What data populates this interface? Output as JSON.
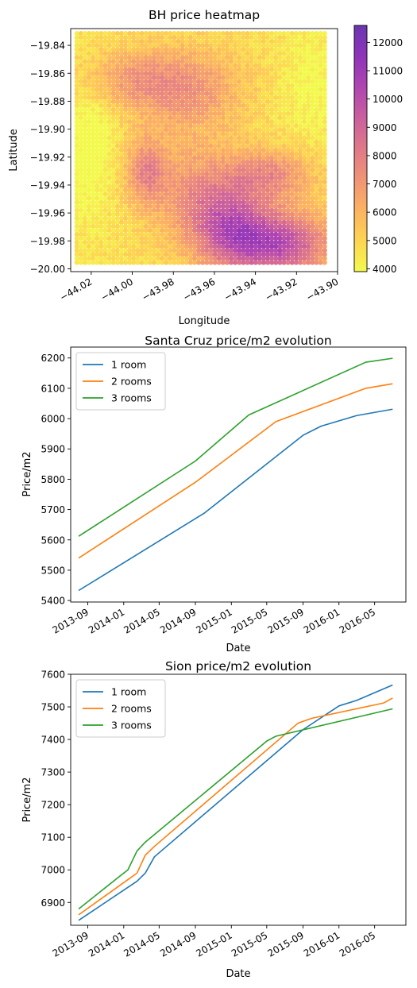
{
  "chart_data": [
    {
      "type": "heatmap",
      "title": "BH price heatmap",
      "xlabel": "Longitude",
      "ylabel": "Latitude",
      "xlim": [
        -44.03,
        -43.9
      ],
      "ylim": [
        -20.002,
        -19.828
      ],
      "xticks": [
        -44.02,
        -44.0,
        -43.98,
        -43.96,
        -43.94,
        -43.92,
        -43.9
      ],
      "xtick_labels": [
        "−44.02",
        "−44.00",
        "−43.98",
        "−43.96",
        "−43.94",
        "−43.92",
        "−43.90"
      ],
      "yticks": [
        -19.84,
        -19.86,
        -19.88,
        -19.9,
        -19.92,
        -19.94,
        -19.96,
        -19.98,
        -20.0
      ],
      "ytick_labels": [
        "−19.84",
        "−19.86",
        "−19.88",
        "−19.90",
        "−19.92",
        "−19.94",
        "−19.96",
        "−19.98",
        "−20.00"
      ],
      "colorbar": {
        "range": [
          3900,
          12600
        ],
        "ticks": [
          4000,
          5000,
          6000,
          7000,
          8000,
          9000,
          10000,
          11000,
          12000
        ],
        "tick_labels": [
          "4000",
          "5000",
          "6000",
          "7000",
          "8000",
          "9000",
          "10000",
          "11000",
          "12000"
        ],
        "colormap": "plasma_r",
        "alpha": 0.8
      },
      "extent": {
        "lon": [
          -44.027,
          -43.9063
        ],
        "lat": [
          -19.8315,
          -19.9955
        ]
      },
      "grid": false
    },
    {
      "type": "line",
      "title": "Santa Cruz price/m2 evolution",
      "xlabel": "Date",
      "ylabel": "Price/m2",
      "xlim": [
        "2013-07-05",
        "2016-08-15"
      ],
      "ylim": [
        5395,
        6236
      ],
      "xticks": [
        "2013-09",
        "2014-01",
        "2014-05",
        "2014-09",
        "2015-01",
        "2015-05",
        "2015-09",
        "2016-01",
        "2016-05"
      ],
      "yticks": [
        5400,
        5500,
        5600,
        5700,
        5800,
        5900,
        6000,
        6100,
        6200
      ],
      "legend": "upper-left",
      "grid": false,
      "series": [
        {
          "name": "1 room",
          "color": "#1f77b4",
          "points": [
            [
              "2013-08-01",
              5433
            ],
            [
              "2014-10-01",
              5688
            ],
            [
              "2015-09-01",
              5945
            ],
            [
              "2015-11-01",
              5975
            ],
            [
              "2016-03-01",
              6010
            ],
            [
              "2016-07-01",
              6031
            ]
          ]
        },
        {
          "name": "2 rooms",
          "color": "#ff7f0e",
          "points": [
            [
              "2013-08-01",
              5540
            ],
            [
              "2014-09-01",
              5790
            ],
            [
              "2015-06-01",
              5990
            ],
            [
              "2016-04-01",
              6100
            ],
            [
              "2016-07-01",
              6115
            ]
          ]
        },
        {
          "name": "3 rooms",
          "color": "#2ca02c",
          "points": [
            [
              "2013-08-01",
              5612
            ],
            [
              "2014-09-01",
              5860
            ],
            [
              "2015-03-01",
              6012
            ],
            [
              "2016-04-01",
              6186
            ],
            [
              "2016-07-01",
              6199
            ]
          ]
        }
      ]
    },
    {
      "type": "line",
      "title": "Sion price/m2 evolution",
      "xlabel": "Date",
      "ylabel": "Price/m2",
      "xlim": [
        "2013-07-05",
        "2016-08-15"
      ],
      "ylim": [
        6830,
        7600
      ],
      "xticks": [
        "2013-09",
        "2014-01",
        "2014-05",
        "2014-09",
        "2015-01",
        "2015-05",
        "2015-09",
        "2016-01",
        "2016-05"
      ],
      "yticks": [
        6900,
        7000,
        7100,
        7200,
        7300,
        7400,
        7500,
        7600
      ],
      "legend": "upper-left",
      "grid": false,
      "series": [
        {
          "name": "1 room",
          "color": "#1f77b4",
          "points": [
            [
              "2013-08-01",
              6845
            ],
            [
              "2014-02-15",
              6965
            ],
            [
              "2014-03-15",
              6990
            ],
            [
              "2014-04-15",
              7040
            ],
            [
              "2015-09-01",
              7430
            ],
            [
              "2016-01-01",
              7503
            ],
            [
              "2016-03-01",
              7520
            ],
            [
              "2016-07-01",
              7567
            ]
          ]
        },
        {
          "name": "2 rooms",
          "color": "#ff7f0e",
          "points": [
            [
              "2013-08-01",
              6862
            ],
            [
              "2014-01-15",
              6970
            ],
            [
              "2014-02-15",
              6990
            ],
            [
              "2014-03-15",
              7045
            ],
            [
              "2014-04-15",
              7072
            ],
            [
              "2015-08-15",
              7450
            ],
            [
              "2015-10-01",
              7465
            ],
            [
              "2016-06-01",
              7512
            ],
            [
              "2016-07-01",
              7527
            ]
          ]
        },
        {
          "name": "3 rooms",
          "color": "#2ca02c",
          "points": [
            [
              "2013-08-01",
              6880
            ],
            [
              "2013-12-15",
              6978
            ],
            [
              "2014-01-15",
              7000
            ],
            [
              "2014-02-15",
              7058
            ],
            [
              "2014-03-15",
              7085
            ],
            [
              "2015-05-01",
              7395
            ],
            [
              "2015-06-01",
              7410
            ],
            [
              "2016-07-01",
              7494
            ]
          ]
        }
      ]
    }
  ]
}
